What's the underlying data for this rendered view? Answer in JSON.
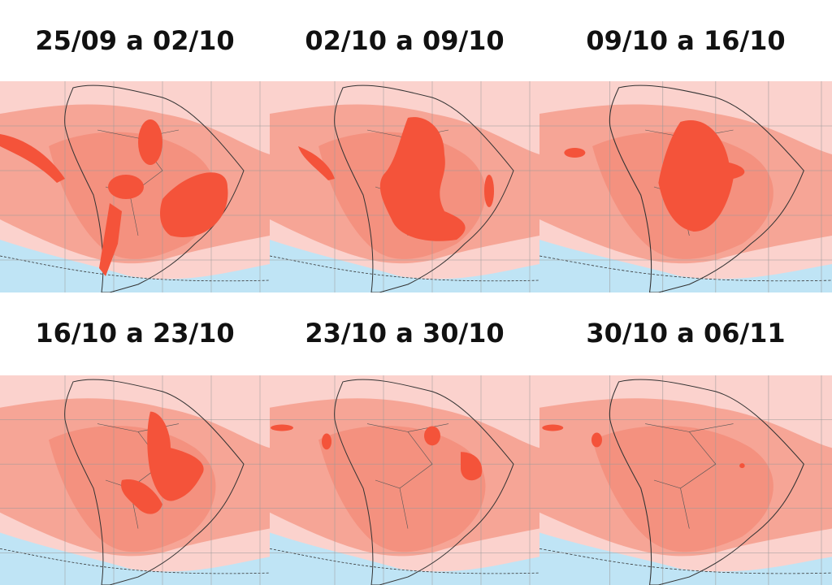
{
  "panels": [
    {
      "title": "25/09 a 02/10"
    },
    {
      "title": "02/10 a 09/10"
    },
    {
      "title": "09/10 a 16/10"
    },
    {
      "title": "16/10 a 23/10"
    },
    {
      "title": "23/10 a 30/10"
    },
    {
      "title": "30/10 a 06/11"
    }
  ]
}
